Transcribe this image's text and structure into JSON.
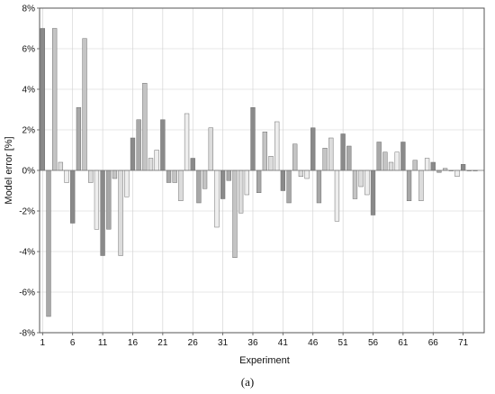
{
  "caption": "(a)",
  "chart_data": {
    "type": "bar",
    "title": "",
    "xlabel": "Experiment",
    "ylabel": "Model error [%]",
    "ylim": [
      -8,
      8
    ],
    "y_ticks": [
      -8,
      -6,
      -4,
      -2,
      0,
      2,
      4,
      6,
      8
    ],
    "y_tick_labels": [
      "-8%",
      "-6%",
      "-4%",
      "-2%",
      "0%",
      "2%",
      "4%",
      "6%",
      "8%"
    ],
    "x_tick_labels": [
      "1",
      "6",
      "11",
      "16",
      "21",
      "26",
      "31",
      "36",
      "41",
      "46",
      "51",
      "56",
      "61",
      "66",
      "71"
    ],
    "x_ticks_at": [
      1,
      6,
      11,
      16,
      21,
      26,
      31,
      36,
      41,
      46,
      51,
      56,
      61,
      66,
      71
    ],
    "grid": "horizontal and vertical gridlines",
    "colors": [
      "#8a8a8a",
      "#a8a8a8",
      "#c4c4c4",
      "#dcdcdc",
      "#eeeeee"
    ],
    "categories": [
      1,
      2,
      3,
      4,
      5,
      6,
      7,
      8,
      9,
      10,
      11,
      12,
      13,
      14,
      15,
      16,
      17,
      18,
      19,
      20,
      21,
      22,
      23,
      24,
      25,
      26,
      27,
      28,
      29,
      30,
      31,
      32,
      33,
      34,
      35,
      36,
      37,
      38,
      39,
      40,
      41,
      42,
      43,
      44,
      45,
      46,
      47,
      48,
      49,
      50,
      51,
      52,
      53,
      54,
      55,
      56,
      57,
      58,
      59,
      60,
      61,
      62,
      63,
      64,
      65,
      66,
      67,
      68,
      69,
      70,
      71,
      72,
      73
    ],
    "values": [
      7.0,
      -7.2,
      7.0,
      0.4,
      -0.6,
      -2.6,
      3.1,
      6.5,
      -0.6,
      -2.9,
      -4.2,
      -2.9,
      -0.4,
      -4.2,
      -1.3,
      1.6,
      2.5,
      4.3,
      0.6,
      1.0,
      2.5,
      -0.6,
      -0.6,
      -1.5,
      2.8,
      0.6,
      -1.6,
      -0.9,
      2.1,
      -2.8,
      -1.4,
      -0.5,
      -4.3,
      -2.1,
      -1.2,
      3.1,
      -1.1,
      1.9,
      0.7,
      2.4,
      -1.0,
      -1.6,
      1.3,
      -0.3,
      -0.4,
      2.1,
      -1.6,
      1.1,
      1.6,
      -2.5,
      1.8,
      1.2,
      -1.4,
      -0.8,
      -1.2,
      -2.2,
      1.4,
      0.9,
      0.4,
      0.9,
      1.4,
      -1.5,
      0.5,
      -1.5,
      0.6,
      0.4,
      -0.1,
      0.1,
      0.0,
      -0.3,
      0.3,
      0.0,
      0.0
    ]
  }
}
